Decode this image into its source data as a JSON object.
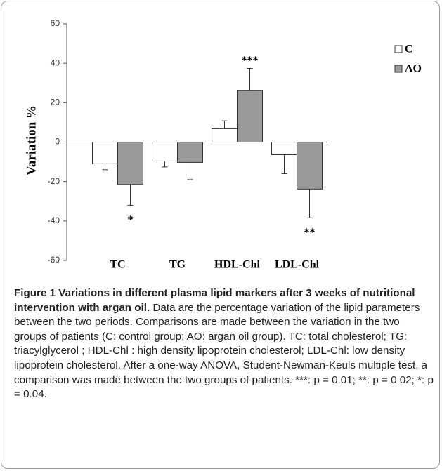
{
  "chart_data": {
    "type": "bar",
    "ylabel": "Variation %",
    "categories": [
      "TC",
      "TG",
      "HDL-Chl",
      "LDL-Chl"
    ],
    "series": [
      {
        "name": "C",
        "color": "#ffffff",
        "values": [
          -11,
          -9.6,
          6.8,
          -6.4
        ],
        "errors": [
          3,
          3,
          4,
          9.6
        ]
      },
      {
        "name": "AO",
        "color": "#9a9a9a",
        "values": [
          -21.5,
          -10.3,
          26.3,
          -23.8
        ],
        "errors": [
          10.5,
          8.7,
          11.1,
          14.6
        ]
      }
    ],
    "significance": [
      "*",
      null,
      "***",
      "**"
    ],
    "ylim": [
      -60,
      60
    ],
    "yticks": [
      -60,
      -40,
      -20,
      0,
      20,
      40,
      60
    ],
    "legend": "upper right"
  },
  "caption": {
    "title": "Figure 1 Variations in different plasma lipid markers after 3 weeks of nutritional intervention with argan oil.",
    "text": "Data are the percentage variation of the lipid parameters between the two periods. Comparisons are made between the variation in the two groups of patients (C: control group; AO: argan oil group). TC: total cholesterol; TG: triacylglycerol ; HDL-Chl : high density lipoprotein cholesterol; LDL-Chl: low density lipoprotein cholesterol. After a one-way ANOVA, Student-Newman-Keuls multiple test, a comparison was made between the two groups of patients. ***: p = 0.01; **: p = 0.02; *: p = 0.04."
  }
}
